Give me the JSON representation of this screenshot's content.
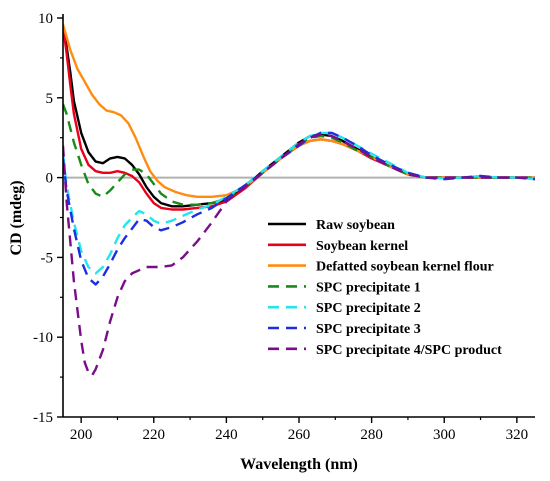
{
  "chart_data": {
    "type": "line",
    "title": "",
    "xlabel": "Wavelength (nm)",
    "ylabel": "CD (mdeg)",
    "xlim": [
      195,
      325
    ],
    "ylim": [
      -15,
      10
    ],
    "xticks": [
      200,
      220,
      240,
      260,
      280,
      300,
      320
    ],
    "yticks": [
      -15,
      -10,
      -5,
      0,
      5,
      10
    ],
    "grid": false,
    "legend_position": "bottom-right",
    "reference_line": {
      "y": 0,
      "color": "#b0b0b0"
    },
    "series": [
      {
        "name": "Raw soybean",
        "color": "#000000",
        "dash": "solid",
        "x": [
          195,
          196,
          197,
          198,
          200,
          202,
          204,
          206,
          208,
          210,
          212,
          214,
          216,
          218,
          220,
          222,
          225,
          228,
          232,
          236,
          240,
          245,
          250,
          255,
          260,
          263,
          266,
          269,
          272,
          276,
          280,
          285,
          290,
          295,
          300,
          305,
          310,
          315,
          320,
          325
        ],
        "y": [
          9.5,
          8.2,
          6.6,
          4.8,
          2.8,
          1.6,
          1.0,
          0.9,
          1.2,
          1.3,
          1.2,
          0.8,
          0.2,
          -0.6,
          -1.2,
          -1.6,
          -1.8,
          -1.8,
          -1.7,
          -1.6,
          -1.4,
          -0.6,
          0.4,
          1.3,
          2.2,
          2.6,
          2.7,
          2.6,
          2.3,
          1.8,
          1.3,
          0.7,
          0.2,
          0.0,
          0.0,
          0.0,
          0.05,
          0.0,
          0.0,
          -0.05
        ]
      },
      {
        "name": "Soybean kernel",
        "color": "#e8001c",
        "dash": "solid",
        "x": [
          195,
          196,
          197,
          198,
          200,
          202,
          204,
          206,
          208,
          210,
          212,
          214,
          216,
          218,
          220,
          222,
          225,
          228,
          232,
          236,
          240,
          245,
          250,
          255,
          260,
          263,
          266,
          269,
          272,
          276,
          280,
          285,
          290,
          295,
          300,
          305,
          310,
          315,
          320,
          325
        ],
        "y": [
          9.5,
          7.8,
          5.8,
          4.0,
          1.8,
          0.8,
          0.4,
          0.3,
          0.3,
          0.4,
          0.3,
          0.1,
          -0.3,
          -1.0,
          -1.6,
          -1.9,
          -2.0,
          -2.0,
          -1.9,
          -1.8,
          -1.5,
          -0.7,
          0.3,
          1.2,
          2.0,
          2.3,
          2.4,
          2.3,
          2.1,
          1.7,
          1.2,
          0.7,
          0.2,
          0.0,
          0.0,
          0.0,
          0.0,
          0.0,
          0.0,
          0.0
        ]
      },
      {
        "name": "Defatted soybean kernel flour",
        "color": "#ff8c10",
        "dash": "solid",
        "x": [
          195,
          197,
          199,
          201,
          203,
          205,
          207,
          209,
          211,
          213,
          215,
          217,
          219,
          221,
          223,
          226,
          229,
          232,
          236,
          240,
          245,
          250,
          255,
          260,
          263,
          266,
          269,
          272,
          276,
          280,
          285,
          290,
          295,
          300,
          305,
          310,
          315,
          320,
          325
        ],
        "y": [
          9.6,
          8.0,
          6.8,
          6.0,
          5.2,
          4.6,
          4.2,
          4.1,
          3.9,
          3.4,
          2.5,
          1.4,
          0.4,
          -0.2,
          -0.6,
          -0.9,
          -1.1,
          -1.2,
          -1.2,
          -1.1,
          -0.6,
          0.3,
          1.2,
          2.0,
          2.3,
          2.4,
          2.3,
          2.1,
          1.7,
          1.3,
          0.7,
          0.2,
          0.0,
          0.0,
          0.0,
          0.0,
          0.0,
          0.0,
          0.0
        ]
      },
      {
        "name": "SPC precipitate 1",
        "color": "#1a8a1a",
        "dash": "dashed",
        "x": [
          195,
          196,
          198,
          200,
          202,
          204,
          206,
          208,
          210,
          212,
          214,
          216,
          218,
          220,
          222,
          225,
          228,
          232,
          236,
          240,
          245,
          250,
          255,
          260,
          263,
          266,
          269,
          272,
          276,
          280,
          285,
          290,
          295,
          300,
          305,
          310,
          315,
          320,
          325
        ],
        "y": [
          4.6,
          4.0,
          2.2,
          0.8,
          -0.4,
          -1.0,
          -1.2,
          -0.8,
          -0.3,
          0.2,
          0.5,
          0.5,
          0.2,
          -0.4,
          -1.0,
          -1.5,
          -1.7,
          -1.7,
          -1.6,
          -1.3,
          -0.6,
          0.3,
          1.2,
          2.1,
          2.5,
          2.6,
          2.5,
          2.2,
          1.7,
          1.3,
          0.7,
          0.2,
          0.0,
          0.0,
          0.0,
          0.0,
          0.0,
          0.0,
          0.0
        ]
      },
      {
        "name": "SPC precipitate 2",
        "color": "#22e5f0",
        "dash": "dashed",
        "x": [
          195,
          196,
          198,
          200,
          202,
          204,
          206,
          208,
          210,
          212,
          214,
          216,
          218,
          220,
          222,
          225,
          228,
          232,
          236,
          240,
          245,
          250,
          255,
          260,
          263,
          266,
          269,
          272,
          276,
          280,
          285,
          290,
          295,
          300,
          305,
          310,
          315,
          320,
          325
        ],
        "y": [
          1.5,
          -0.5,
          -2.8,
          -4.6,
          -5.6,
          -6.0,
          -5.6,
          -4.8,
          -3.8,
          -3.0,
          -2.5,
          -2.1,
          -2.3,
          -2.7,
          -2.9,
          -2.7,
          -2.4,
          -2.0,
          -1.7,
          -1.2,
          -0.5,
          0.4,
          1.3,
          2.2,
          2.6,
          2.8,
          2.8,
          2.5,
          2.0,
          1.5,
          0.9,
          0.3,
          0.0,
          -0.05,
          0.0,
          0.1,
          0.0,
          0.0,
          -0.1
        ]
      },
      {
        "name": "SPC precipitate 3",
        "color": "#1c2fe0",
        "dash": "dashed",
        "x": [
          195,
          196,
          198,
          200,
          202,
          204,
          206,
          208,
          210,
          212,
          214,
          216,
          218,
          220,
          222,
          225,
          228,
          232,
          236,
          240,
          245,
          250,
          255,
          260,
          263,
          266,
          269,
          272,
          276,
          280,
          285,
          290,
          295,
          300,
          305,
          310,
          315,
          320,
          325
        ],
        "y": [
          1.2,
          -0.8,
          -3.2,
          -5.2,
          -6.3,
          -6.7,
          -6.2,
          -5.4,
          -4.5,
          -3.8,
          -3.2,
          -2.6,
          -2.7,
          -3.1,
          -3.3,
          -3.1,
          -2.8,
          -2.3,
          -1.9,
          -1.3,
          -0.5,
          0.3,
          1.2,
          2.0,
          2.5,
          2.8,
          2.8,
          2.5,
          2.0,
          1.4,
          0.8,
          0.3,
          0.0,
          -0.1,
          0.0,
          0.1,
          0.0,
          0.0,
          -0.1
        ]
      },
      {
        "name": "SPC precipitate 4/SPC product",
        "color": "#7a0d8a",
        "dash": "dashed",
        "x": [
          195,
          196,
          198,
          200,
          201,
          202,
          203,
          204,
          206,
          208,
          210,
          212,
          214,
          216,
          218,
          220,
          222,
          225,
          228,
          232,
          236,
          240,
          245,
          250,
          255,
          260,
          263,
          266,
          269,
          272,
          276,
          280,
          285,
          290,
          295,
          300,
          305,
          310,
          315,
          320,
          325
        ],
        "y": [
          2.0,
          -1.5,
          -6.5,
          -10.2,
          -11.6,
          -12.2,
          -12.4,
          -12.0,
          -10.8,
          -9.0,
          -7.5,
          -6.5,
          -6.0,
          -5.8,
          -5.6,
          -5.6,
          -5.6,
          -5.5,
          -5.0,
          -4.0,
          -2.8,
          -1.5,
          -0.6,
          0.3,
          1.2,
          2.1,
          2.5,
          2.7,
          2.6,
          2.3,
          1.8,
          1.3,
          0.7,
          0.2,
          0.0,
          0.0,
          0.0,
          0.0,
          0.0,
          0.0,
          0.0
        ]
      }
    ]
  }
}
